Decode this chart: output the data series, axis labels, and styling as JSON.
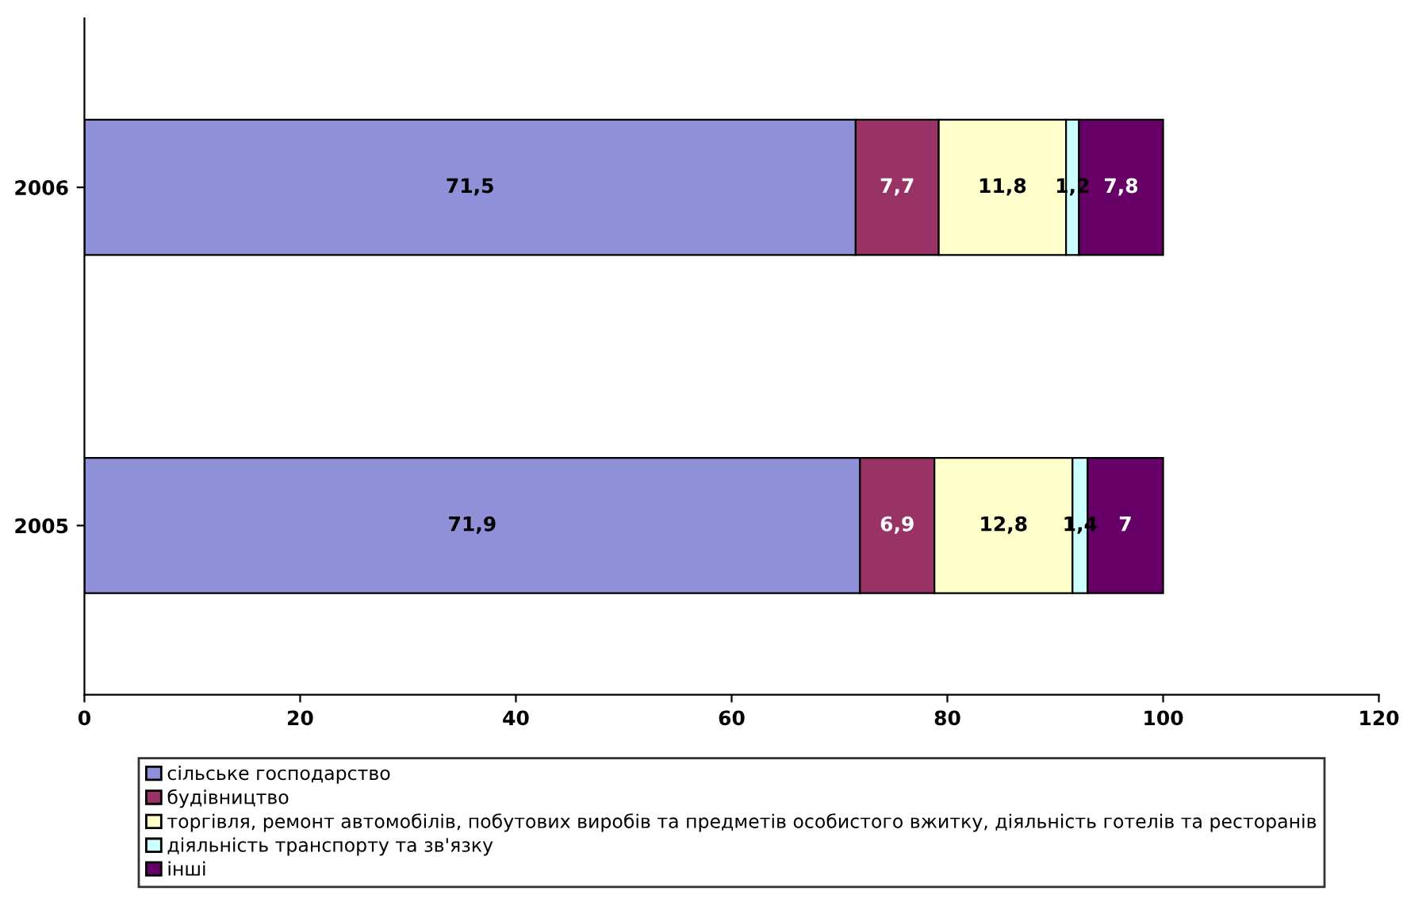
{
  "chart_data": {
    "type": "bar",
    "orientation": "horizontal",
    "stacked": true,
    "categories": [
      "2006",
      "2005"
    ],
    "series": [
      {
        "name": "сільське господарство",
        "color": "#9090d8",
        "values": [
          71.5,
          71.9
        ],
        "value_labels": [
          "71,5",
          "71,9"
        ]
      },
      {
        "name": "будівництво",
        "color": "#993366",
        "values": [
          7.7,
          6.9
        ],
        "value_labels": [
          "7,7",
          "6,9"
        ]
      },
      {
        "name": "торгівля, ремонт автомобілів, побутових виробів та предметів особистого вжитку, діяльність готелів та ресторанів",
        "color": "#ffffcc",
        "values": [
          11.8,
          12.8
        ],
        "value_labels": [
          "11,8",
          "12,8"
        ]
      },
      {
        "name": "діяльність транспорту та зв'язку",
        "color": "#ccffff",
        "values": [
          1.2,
          1.4
        ],
        "value_labels": [
          "1,2",
          "1,4"
        ]
      },
      {
        "name": "інші",
        "color": "#660066",
        "values": [
          7.8,
          7
        ],
        "value_labels": [
          "7,8",
          "7"
        ]
      }
    ],
    "xlim": [
      0,
      120
    ],
    "xticks": [
      0,
      20,
      40,
      60,
      80,
      100,
      120
    ],
    "grid": false,
    "legend": "bottom"
  }
}
